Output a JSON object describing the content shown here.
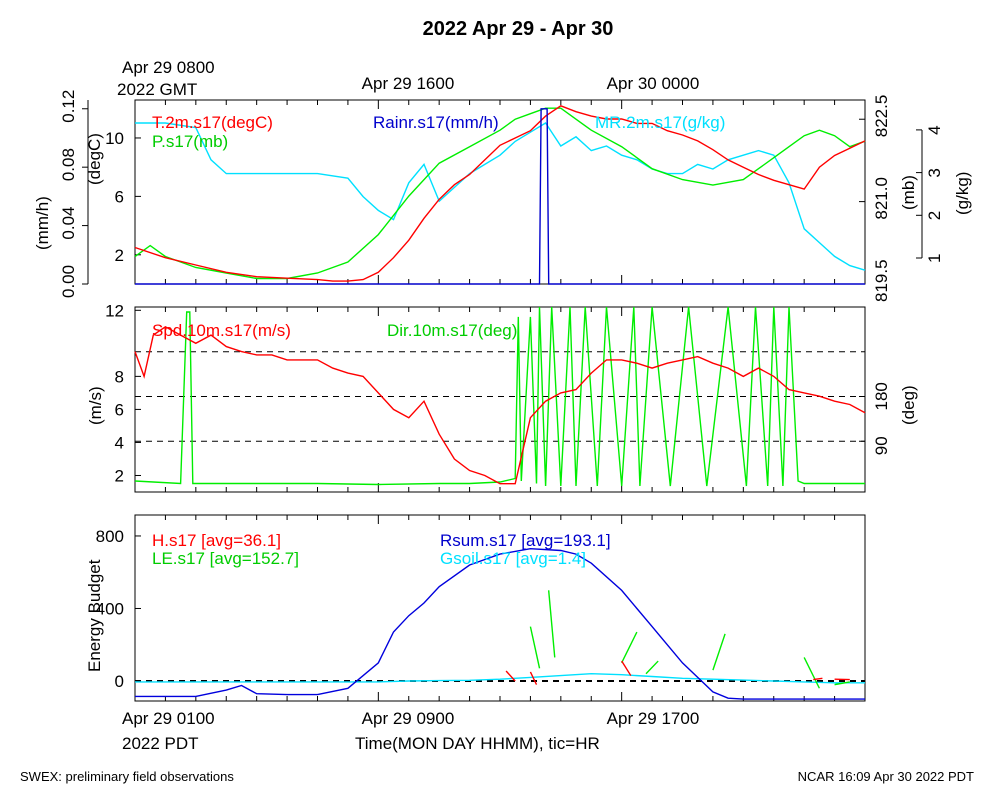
{
  "title": "2022 Apr 29 - Apr 30",
  "top_time_labels": [
    "Apr 29 0800",
    "2022 GMT",
    "Apr 29 1600",
    "Apr 30 0000"
  ],
  "bottom_time_labels": [
    "Apr 29 0100",
    "2022 PDT",
    "Apr 29 0900",
    "Apr 29 1700"
  ],
  "xlabel": "Time(MON DAY HHMM), tic=HR",
  "footer": {
    "left": "SWEX: preliminary field observations",
    "right": "NCAR 16:09 Apr 30 2022 PDT"
  },
  "chart_data": [
    {
      "type": "line",
      "panel": "temperature-pressure-rain-mixing",
      "axes": [
        {
          "label": "(mm/h)",
          "side": "left",
          "ticks": [
            "0.00",
            "0.04",
            "0.08",
            "0.12"
          ],
          "range": [
            0,
            0.12
          ]
        },
        {
          "label": "(degC)",
          "side": "left",
          "ticks": [
            "2",
            "6",
            "10"
          ],
          "range": [
            0,
            12
          ]
        },
        {
          "label": "(mb)",
          "side": "right",
          "ticks": [
            "819.5",
            "821.0",
            "822.5"
          ],
          "range": [
            819.5,
            822.8
          ]
        },
        {
          "label": "(g/kg)",
          "side": "right",
          "ticks": [
            "1",
            "2",
            "3",
            "4"
          ],
          "range": [
            0.9,
            4.1
          ]
        }
      ],
      "x_hours": [
        0,
        24
      ],
      "series": [
        {
          "name": "T.2m.s17(degC)",
          "color": "#ff0000",
          "axis": "degC",
          "x": [
            0,
            1,
            2,
            3,
            4,
            5,
            6,
            6.5,
            7,
            7.5,
            8,
            8.5,
            9,
            9.5,
            10,
            10.5,
            11,
            11.5,
            12,
            12.5,
            13,
            13.5,
            14,
            14.5,
            15,
            15.5,
            16,
            16.5,
            17,
            17.5,
            18,
            18.5,
            19,
            19.5,
            20,
            20.5,
            21,
            21.5,
            22,
            22.5,
            23,
            23.5,
            24
          ],
          "y": [
            2.5,
            1.8,
            1.3,
            0.8,
            0.5,
            0.4,
            0.3,
            0.2,
            0.2,
            0.3,
            0.8,
            1.8,
            3.0,
            4.5,
            5.8,
            6.8,
            7.5,
            8.5,
            9.5,
            10.0,
            10.5,
            11.5,
            12.2,
            11.8,
            11.5,
            11.3,
            11.3,
            11.0,
            11.0,
            10.5,
            10.2,
            9.8,
            9.2,
            8.5,
            8.0,
            7.5,
            7.1,
            6.8,
            6.5,
            8.0,
            8.8,
            9.3,
            9.8
          ]
        },
        {
          "name": "P.s17(mb)",
          "color": "#00ee00",
          "axis": "mb",
          "x": [
            0,
            0.5,
            1,
            1.5,
            2,
            3,
            4,
            5,
            6,
            7,
            8,
            9,
            10,
            11,
            12,
            12.5,
            13,
            13.5,
            14,
            14.5,
            15,
            16,
            17,
            18,
            19,
            20,
            20.5,
            21,
            21.5,
            22,
            22.5,
            23,
            23.5,
            24
          ],
          "y": [
            820.0,
            820.2,
            820.0,
            819.9,
            819.8,
            819.7,
            819.6,
            819.6,
            819.7,
            819.9,
            820.4,
            821.1,
            821.7,
            822.0,
            822.3,
            822.5,
            822.6,
            822.7,
            822.7,
            822.5,
            822.3,
            822.0,
            821.6,
            821.4,
            821.3,
            821.4,
            821.6,
            821.8,
            822.0,
            822.2,
            822.3,
            822.2,
            822.0,
            822.1
          ]
        },
        {
          "name": "Rainr.s17(mm/h)",
          "color": "#0000cc",
          "axis": "mm/h",
          "x": [
            0,
            13.3,
            13.35,
            13.45,
            13.55,
            13.6,
            24
          ],
          "y": [
            0,
            0,
            0.12,
            0.12,
            0.12,
            0,
            0
          ]
        },
        {
          "name": "MR.2m.s17(g/kg)",
          "color": "#00e0ff",
          "axis": "g/kg",
          "x": [
            0,
            1,
            2,
            2.5,
            3,
            4,
            5,
            6,
            7,
            7.5,
            8,
            8.5,
            9,
            9.5,
            10,
            10.5,
            11,
            11.5,
            12,
            12.5,
            13,
            13.5,
            14,
            14.5,
            15,
            15.5,
            16,
            16.5,
            17,
            17.5,
            18,
            18.5,
            19,
            19.5,
            20,
            20.5,
            21,
            21.5,
            22,
            22.5,
            23,
            23.5,
            24
          ],
          "y": [
            4.1,
            4.1,
            4.0,
            3.3,
            3.0,
            3.0,
            3.0,
            3.0,
            2.9,
            2.5,
            2.2,
            2.0,
            2.8,
            3.2,
            2.4,
            2.7,
            3.0,
            3.2,
            3.4,
            3.7,
            3.9,
            4.1,
            3.6,
            3.8,
            3.5,
            3.6,
            3.4,
            3.3,
            3.1,
            3.0,
            3.0,
            3.2,
            3.1,
            3.3,
            3.4,
            3.5,
            3.4,
            2.8,
            1.8,
            1.5,
            1.2,
            1.0,
            0.9
          ]
        }
      ]
    },
    {
      "type": "line",
      "panel": "wind",
      "axes": [
        {
          "label": "(m/s)",
          "side": "left",
          "ticks": [
            "2",
            "4",
            "6",
            "8",
            "12"
          ],
          "range": [
            1,
            12
          ]
        },
        {
          "label": "(deg)",
          "side": "right",
          "ticks": [
            "90",
            "180"
          ],
          "range": [
            0,
            360
          ]
        }
      ],
      "x_hours": [
        0,
        24
      ],
      "series": [
        {
          "name": "Spd.10m.s17(m/s)",
          "color": "#ff0000",
          "axis": "m/s",
          "x": [
            0,
            0.3,
            0.6,
            1,
            1.5,
            2,
            2.5,
            3,
            3.5,
            4,
            4.5,
            5,
            5.5,
            6,
            6.5,
            7,
            7.5,
            8,
            8.5,
            9,
            9.5,
            10,
            10.5,
            11,
            11.5,
            12,
            12.5,
            13,
            13.5,
            14,
            14.5,
            15,
            15.5,
            16,
            16.5,
            17,
            17.5,
            18,
            18.5,
            19,
            19.5,
            20,
            20.5,
            21,
            21.5,
            22,
            22.5,
            23,
            23.5,
            24
          ],
          "y": [
            9.5,
            8.0,
            10.5,
            11.0,
            10.5,
            10.0,
            10.5,
            9.8,
            9.5,
            9.3,
            9.3,
            9.0,
            9.0,
            9.0,
            8.5,
            8.2,
            8.0,
            7.0,
            6.0,
            5.5,
            6.5,
            4.5,
            3.0,
            2.3,
            2.0,
            1.5,
            1.5,
            5.5,
            6.5,
            7.0,
            7.2,
            8.2,
            9.0,
            9.0,
            8.8,
            8.5,
            8.8,
            9.0,
            9.2,
            8.8,
            8.5,
            8.0,
            8.5,
            8.0,
            7.2,
            7.0,
            6.8,
            6.5,
            6.3,
            5.8
          ]
        },
        {
          "name": "Dir.10m.s17(deg)",
          "color": "#00ee00",
          "axis": "deg",
          "x": [
            0,
            1.5,
            1.7,
            1.8,
            1.9,
            2.5,
            4,
            6,
            8,
            10,
            11,
            12,
            12.5,
            12.6,
            12.7,
            13,
            13.2,
            13.3,
            13.5,
            13.7,
            14,
            14.3,
            14.5,
            14.8,
            15.2,
            15.5,
            16,
            16.4,
            16.6,
            17,
            17.6,
            18.2,
            18.8,
            19.5,
            20.1,
            20.4,
            20.8,
            21,
            21.3,
            21.5,
            21.8,
            22,
            23,
            24
          ],
          "y": [
            10,
            5,
            350,
            350,
            5,
            5,
            5,
            5,
            3,
            5,
            5,
            8,
            15,
            340,
            10,
            340,
            5,
            360,
            0,
            360,
            0,
            360,
            0,
            360,
            0,
            360,
            0,
            360,
            0,
            360,
            0,
            360,
            0,
            360,
            0,
            360,
            0,
            360,
            0,
            360,
            10,
            5,
            5,
            5
          ]
        }
      ]
    },
    {
      "type": "line",
      "panel": "energy-budget",
      "ylabel": "Energy Budget",
      "ticks": [
        "0",
        "400",
        "800"
      ],
      "ylim": [
        -100,
        820
      ],
      "x_hours": [
        0,
        24
      ],
      "series": [
        {
          "name": "H.s17 [avg=36.1]",
          "color": "#ff0000",
          "x": [
            12.2,
            12.5,
            13.0,
            13.2,
            16.0,
            16.3,
            22.3,
            22.6,
            23.0,
            23.5
          ],
          "y": [
            55,
            0,
            50,
            -20,
            110,
            30,
            8,
            15,
            10,
            8
          ]
        },
        {
          "name": "LE.s17 [avg=152.7]",
          "color": "#00ee00",
          "x": [
            13.0,
            13.3,
            13.6,
            13.8,
            16.0,
            16.5,
            16.8,
            17.2,
            19.0,
            19.4,
            22.0,
            22.5,
            23.0,
            23.5
          ],
          "y": [
            300,
            70,
            500,
            130,
            100,
            270,
            40,
            110,
            60,
            260,
            130,
            -40,
            -20,
            -5
          ]
        },
        {
          "name": "Rsum.s17 [avg=193.1]",
          "color": "#0000dd",
          "x": [
            0,
            2,
            3,
            3.5,
            4,
            5,
            6,
            7,
            8,
            8.5,
            9,
            9.5,
            10,
            11,
            12,
            13,
            14,
            14.5,
            15,
            16,
            17,
            18,
            18.5,
            19,
            19.5,
            20,
            21,
            22,
            23,
            24
          ],
          "y": [
            -85,
            -85,
            -50,
            -25,
            -70,
            -75,
            -75,
            -40,
            100,
            270,
            360,
            430,
            520,
            640,
            700,
            730,
            720,
            700,
            650,
            500,
            300,
            100,
            20,
            -60,
            -95,
            -100,
            -100,
            -100,
            -100,
            -100
          ]
        },
        {
          "name": "Gsoil.s17 [avg=1.4]",
          "color": "#00e0ff",
          "x": [
            0,
            6,
            8,
            9,
            10,
            11,
            12,
            13,
            14,
            15,
            16,
            17,
            18,
            19,
            20,
            21,
            22,
            23,
            24
          ],
          "y": [
            -5,
            -5,
            -5,
            0,
            2,
            4,
            10,
            20,
            30,
            40,
            35,
            25,
            15,
            10,
            5,
            0,
            -5,
            -10,
            -10
          ]
        }
      ],
      "reference_lines": [
        0
      ]
    }
  ]
}
